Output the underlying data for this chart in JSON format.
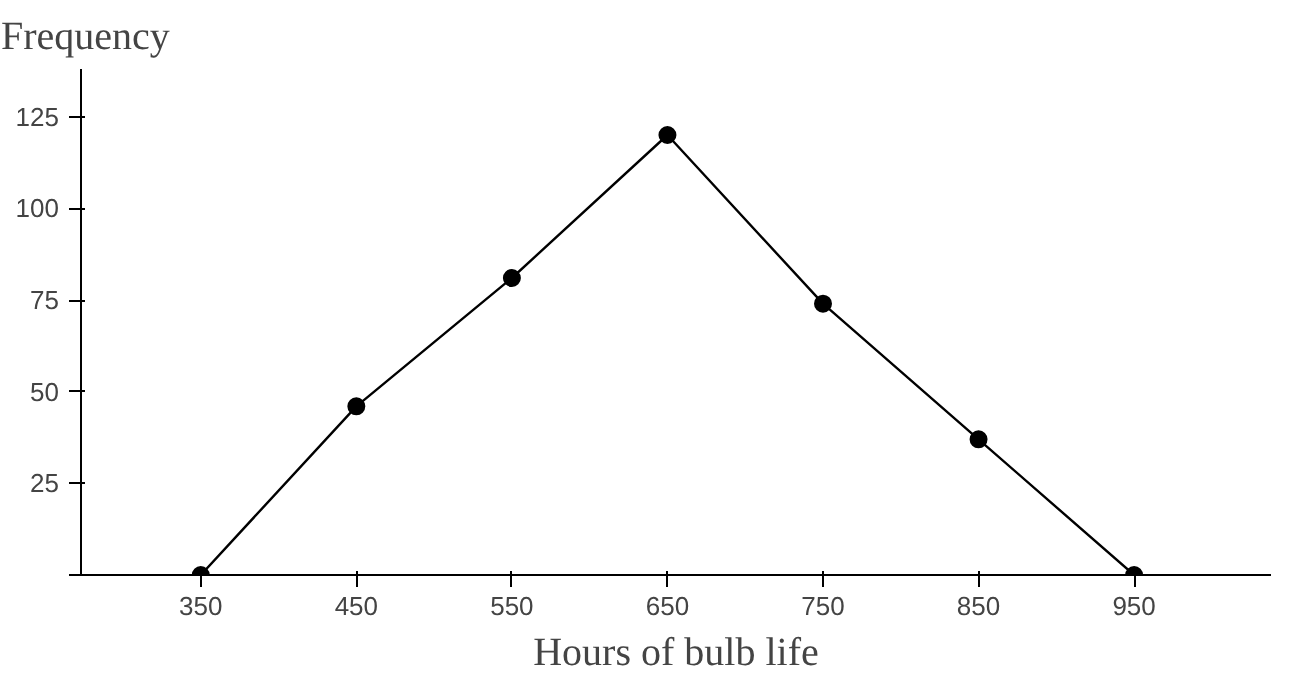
{
  "chart_data": {
    "type": "line",
    "ylabel": "Frequency",
    "xlabel": "Hours of bulb life",
    "x": [
      350,
      450,
      550,
      650,
      750,
      850,
      950
    ],
    "values": [
      0,
      46,
      81,
      120,
      74,
      37,
      0
    ],
    "color": "#000000",
    "marker": "circle",
    "line_style": "solid",
    "grid": false,
    "xlim": [
      273,
      1038
    ],
    "ylim": [
      0,
      138
    ],
    "xticks": [
      350,
      450,
      550,
      650,
      750,
      850,
      950
    ],
    "yticks": [
      {
        "value": 0,
        "label": null
      },
      25,
      50,
      75,
      100,
      125
    ]
  }
}
